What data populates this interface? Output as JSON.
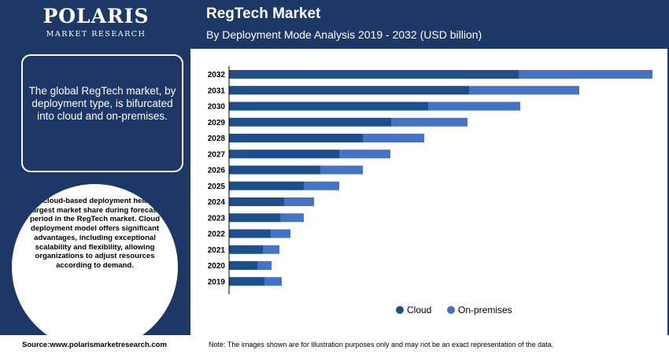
{
  "logo": {
    "name": "POLARIS",
    "sub": "MARKET RESEARCH"
  },
  "title": "RegTech Market",
  "subtitle": "By Deployment Mode Analysis 2019 - 2032 (USD billion)",
  "sidebar": {
    "box_text": "The global RegTech market, by deployment type, is bifurcated into cloud and on-premises.",
    "circle_text": "The cloud-based deployment held the largest market share during forecast period in the RegTech market. Cloud deployment model offers significant advantages, including exceptional scalability and flexibility, allowing organizations to adjust resources according to demand."
  },
  "footer": {
    "source": "Source:www.polarismarketresearch.com",
    "note": "Note: The images shown are for illustration purposes only and may not be an exact representation of the data."
  },
  "chart_data": {
    "type": "bar",
    "orientation": "horizontal",
    "stacked": true,
    "categories": [
      "2032",
      "2031",
      "2030",
      "2029",
      "2028",
      "2027",
      "2026",
      "2025",
      "2024",
      "2023",
      "2022",
      "2021",
      "2020",
      "2019"
    ],
    "series": [
      {
        "name": "Cloud",
        "color": "#1f4e8c",
        "values": [
          36.8,
          30.5,
          25.3,
          20.6,
          17.0,
          14.0,
          11.6,
          9.5,
          7.0,
          6.5,
          5.3,
          4.3,
          3.6,
          4.5
        ]
      },
      {
        "name": "On-premises",
        "color": "#4472c4",
        "values": [
          17.0,
          14.0,
          11.7,
          9.7,
          7.8,
          6.5,
          5.4,
          4.5,
          3.8,
          3.0,
          2.5,
          2.1,
          1.8,
          2.2
        ]
      }
    ],
    "legend_position": "bottom-right",
    "grid": false
  }
}
